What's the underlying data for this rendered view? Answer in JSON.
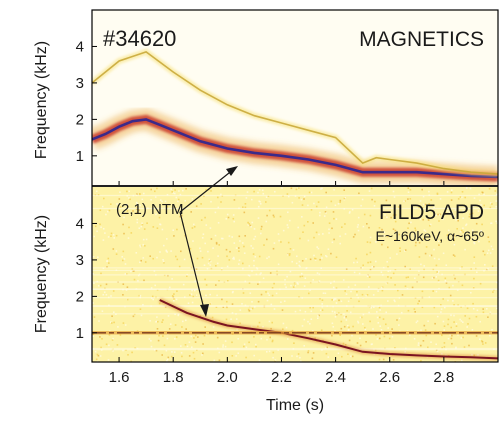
{
  "chart_data": [
    {
      "type": "heatmap",
      "panel_label": "MAGNETICS",
      "shot_label": "#34620",
      "xlabel": "",
      "ylabel": "Frequency (kHz)",
      "xlim": [
        1.5,
        3.0
      ],
      "ylim": [
        0.2,
        5.0
      ],
      "yticks": [
        1,
        2,
        3,
        4
      ],
      "colormap": [
        "#fffbe6",
        "#f7e27a",
        "#e8a53c",
        "#c93b2a",
        "#3b2a8a"
      ],
      "series": [
        {
          "intensity": "high",
          "x": [
            1.5,
            1.55,
            1.6,
            1.65,
            1.7,
            1.75,
            1.8,
            1.85,
            1.9,
            2.0,
            2.1,
            2.2,
            2.3,
            2.4,
            2.5,
            2.6,
            2.7,
            2.8,
            2.9,
            3.0
          ],
          "y": [
            1.45,
            1.6,
            1.8,
            1.95,
            2.0,
            1.85,
            1.7,
            1.55,
            1.4,
            1.2,
            1.08,
            1.0,
            0.9,
            0.75,
            0.55,
            0.55,
            0.55,
            0.5,
            0.45,
            0.42
          ]
        },
        {
          "intensity": "low",
          "x": [
            1.5,
            1.6,
            1.7,
            1.8,
            1.9,
            2.0,
            2.1,
            2.2,
            2.3,
            2.4,
            2.5,
            2.55,
            2.6,
            2.7,
            2.8,
            2.9,
            3.0
          ],
          "y": [
            3.0,
            3.6,
            3.85,
            3.3,
            2.8,
            2.4,
            2.1,
            1.9,
            1.7,
            1.5,
            0.8,
            0.95,
            0.9,
            0.8,
            0.65,
            0.55,
            0.5
          ]
        }
      ]
    },
    {
      "type": "heatmap",
      "panel_label": "FILD5 APD",
      "panel_sublabel": "E~160keV, α~65º",
      "annotation": "(2,1) NTM",
      "xlabel": "Time (s)",
      "ylabel": "Frequency (kHz)",
      "xlim": [
        1.5,
        3.0
      ],
      "ylim": [
        0.2,
        5.0
      ],
      "xticks": [
        1.6,
        1.8,
        2.0,
        2.2,
        2.4,
        2.6,
        2.8
      ],
      "yticks": [
        1,
        2,
        3,
        4
      ],
      "series": [
        {
          "intensity": "high",
          "x": [
            1.75,
            1.85,
            1.95,
            2.0,
            2.1,
            2.2,
            2.3,
            2.4,
            2.5,
            2.6,
            2.7,
            2.8,
            2.9,
            3.0
          ],
          "y": [
            1.9,
            1.55,
            1.3,
            1.2,
            1.1,
            1.0,
            0.85,
            0.68,
            0.48,
            0.42,
            0.38,
            0.35,
            0.33,
            0.3
          ]
        },
        {
          "intensity": "constant",
          "x": [
            1.5,
            3.0
          ],
          "y": [
            1.0,
            1.0
          ]
        }
      ]
    }
  ]
}
